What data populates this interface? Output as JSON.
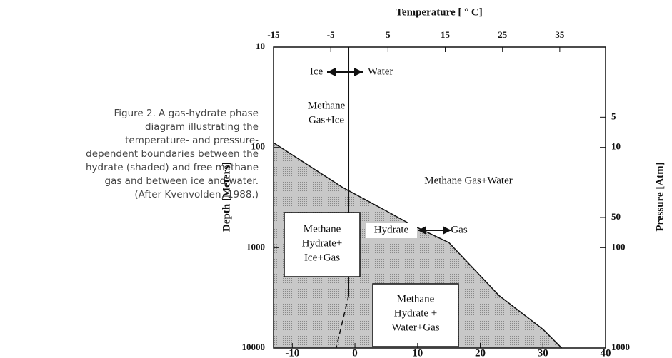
{
  "caption": "Figure 2. A gas-hydrate phase diagram illustrating the temperature- and pressure-dependent boundaries between the hydrate (shaded) and free methane gas and between ice and water. (After Kvenvolden, 1988.)",
  "chart_data": {
    "type": "phase",
    "x2_label": "Temperature [ ° C]",
    "y_label": "Depth [Meters]",
    "y2_label": "Pressure [Atm]",
    "xlim": [
      -13,
      40
    ],
    "xticks": [
      -10,
      0,
      10,
      20,
      30,
      40
    ],
    "x2lim": [
      -15,
      43
    ],
    "x2ticks": [
      -15,
      -5,
      5,
      15,
      25,
      35
    ],
    "ylim": [
      10,
      10000
    ],
    "yticks": [
      10,
      100,
      1000,
      10000
    ],
    "y2lim": [
      1,
      1000
    ],
    "y2ticks": [
      5,
      10,
      50,
      100,
      1000
    ],
    "log_y": true,
    "hydrate_boundary": {
      "x": [
        -13,
        -2,
        5,
        9,
        15,
        23,
        30,
        33
      ],
      "y": [
        90,
        250,
        430,
        590,
        890,
        3000,
        6500,
        10000
      ],
      "fill": "#bdbdbd"
    },
    "ice_water_boundary": {
      "x": [
        -1,
        -1
      ],
      "y": [
        10,
        3000
      ]
    },
    "ice_water_boundary_dashed": {
      "x": [
        -1,
        -3
      ],
      "y": [
        3000,
        10000
      ]
    },
    "annotations": [
      {
        "lines": [
          "Ice"
        ]
      },
      {
        "lines": [
          "Water"
        ]
      },
      {
        "lines": [
          "Methane",
          "Gas+Ice"
        ]
      },
      {
        "lines": [
          "Methane Gas+Water"
        ]
      },
      {
        "lines": [
          "Methane",
          "Hydrate+",
          "Ice+Gas"
        ]
      },
      {
        "lines": [
          "Hydrate"
        ]
      },
      {
        "lines": [
          "Gas"
        ]
      },
      {
        "lines": [
          "Methane",
          "Hydrate +",
          "Water+Gas"
        ]
      }
    ]
  }
}
